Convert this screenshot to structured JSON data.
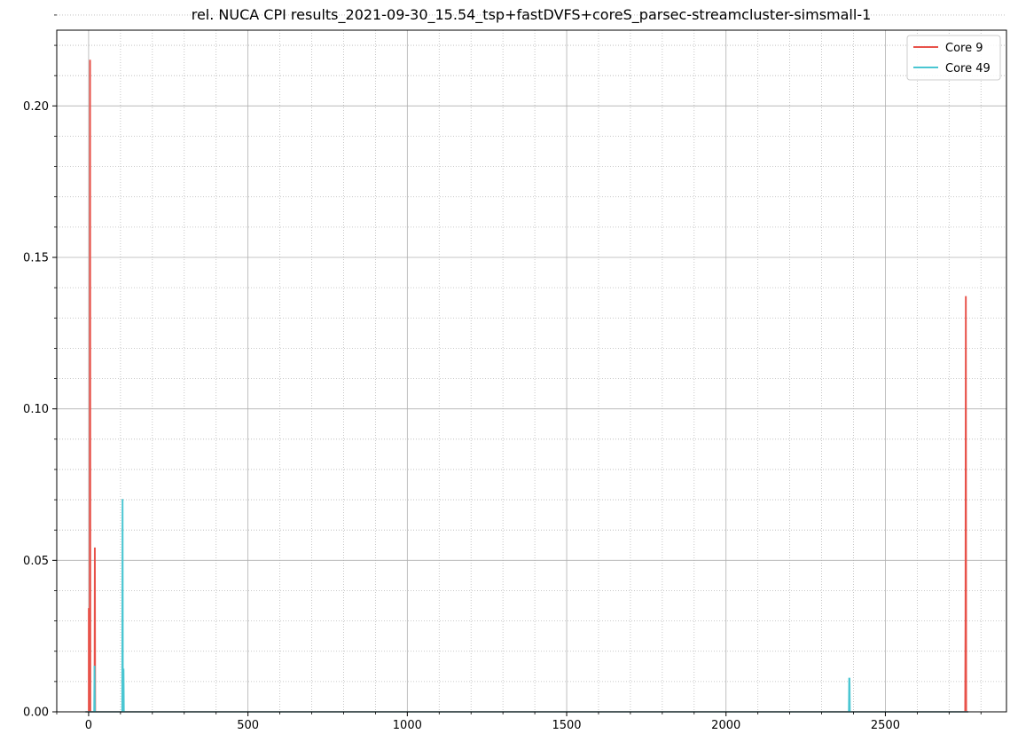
{
  "chart_data": {
    "type": "line",
    "title": "rel. NUCA CPI results_2021-09-30_15.54_tsp+fastDVFS+coreS_parsec-streamcluster-simsmall-1",
    "xlabel": "",
    "ylabel": "",
    "xlim": [
      -100,
      2880
    ],
    "ylim": [
      0,
      0.225
    ],
    "xticks": [
      0,
      500,
      1000,
      1500,
      2000,
      2500
    ],
    "xtick_labels": [
      "0",
      "500",
      "1000",
      "1500",
      "2000",
      "2500"
    ],
    "yticks": [
      0.0,
      0.05,
      0.1,
      0.15,
      0.2
    ],
    "ytick_labels": [
      "0.00",
      "0.05",
      "0.10",
      "0.15",
      "0.20"
    ],
    "x_minor_step": 100,
    "y_minor_step": 0.01,
    "grid": "major solid, minor dotted",
    "legend_position": "top-right",
    "series": [
      {
        "name": "Core 9",
        "color": "#e8524a",
        "points": [
          [
            -10,
            0
          ],
          [
            0,
            0
          ],
          [
            0,
            0.034
          ],
          [
            1,
            0.034
          ],
          [
            2,
            0.0
          ],
          [
            3,
            0.0
          ],
          [
            4,
            0.215
          ],
          [
            5,
            0.215
          ],
          [
            6,
            0.0
          ],
          [
            10,
            0.0
          ],
          [
            18,
            0.0
          ],
          [
            19,
            0.054
          ],
          [
            20,
            0.054
          ],
          [
            21,
            0.0
          ],
          [
            30,
            0
          ],
          [
            2740,
            0
          ],
          [
            2750,
            0
          ],
          [
            2751,
            0.032
          ],
          [
            2752,
            0.137
          ],
          [
            2753,
            0.137
          ],
          [
            2754,
            0.0
          ],
          [
            2760,
            0
          ]
        ]
      },
      {
        "name": "Core 49",
        "color": "#4ac6d2",
        "points": [
          [
            -10,
            0
          ],
          [
            17,
            0
          ],
          [
            18,
            0.015
          ],
          [
            19,
            0.015
          ],
          [
            20,
            0
          ],
          [
            105,
            0
          ],
          [
            106,
            0.07
          ],
          [
            107,
            0.07
          ],
          [
            108,
            0.0
          ],
          [
            109,
            0.014
          ],
          [
            110,
            0.014
          ],
          [
            111,
            0
          ],
          [
            120,
            0
          ],
          [
            2385,
            0
          ],
          [
            2386,
            0.011
          ],
          [
            2388,
            0.011
          ],
          [
            2389,
            0
          ],
          [
            2760,
            0
          ]
        ]
      }
    ]
  }
}
